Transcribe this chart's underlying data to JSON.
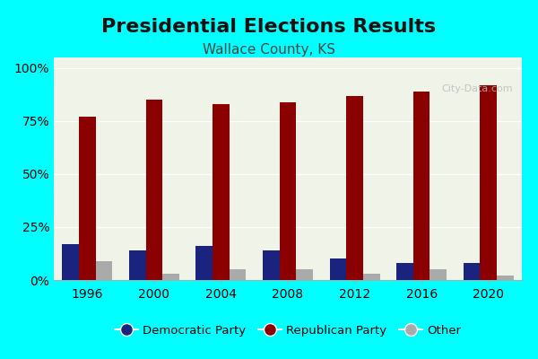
{
  "title": "Presidential Elections Results",
  "subtitle": "Wallace County, KS",
  "years": [
    1996,
    2000,
    2004,
    2008,
    2012,
    2016,
    2020
  ],
  "democratic": [
    17,
    14,
    16,
    14,
    10,
    8,
    8
  ],
  "republican": [
    77,
    85,
    83,
    84,
    87,
    89,
    92
  ],
  "other": [
    9,
    3,
    5,
    5,
    3,
    5,
    2
  ],
  "dem_color": "#1a237e",
  "rep_color": "#8b0000",
  "other_color": "#aaaaaa",
  "bg_color": "#f0f4e8",
  "outer_bg": "#00ffff",
  "bar_width": 0.25,
  "ylim": [
    0,
    105
  ],
  "yticks": [
    0,
    25,
    50,
    75,
    100
  ],
  "ytick_labels": [
    "0%",
    "25%",
    "50%",
    "75%",
    "100%"
  ],
  "legend_labels": [
    "Democratic Party",
    "Republican Party",
    "Other"
  ],
  "title_fontsize": 16,
  "subtitle_fontsize": 11,
  "tick_fontsize": 10
}
